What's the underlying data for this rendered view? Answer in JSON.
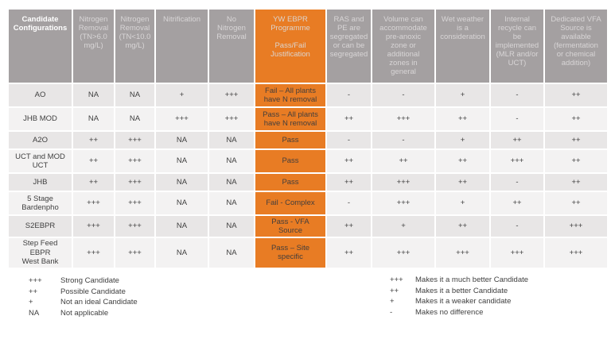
{
  "colors": {
    "accent_orange": "#E87C24",
    "header_gray": "#A4A0A1",
    "row_dark": "#E8E6E6",
    "row_light": "#F3F2F2"
  },
  "table": {
    "columns": [
      "Candidate\nConfigurations",
      "Nitrogen\nRemoval\n(TN>6.0\nmg/L)",
      "Nitrogen\nRemoval\n(TN<10.0\nmg/L)",
      "Nitrification",
      "No\nNitrogen\nRemoval",
      "YW EBPR\nProgramme\n\nPass/Fail\nJustification",
      "RAS and\nPE are\nsegregated\nor can be\nsegregated",
      "Volume can\naccommodate\npre-anoxic\nzone or\nadditional\nzones in\ngeneral",
      "Wet weather\nis a\nconsideration",
      "Internal\nrecycle can\nbe\nimplemented\n(MLR and/or\nUCT)",
      "Dedicated VFA\nSource is\navailable\n(fermentation\nor chemical\naddition)"
    ],
    "rows": [
      {
        "label": "AO",
        "pre": [
          "NA",
          "NA",
          "+",
          "+++"
        ],
        "justification": "Fail – All plants\nhave N removal",
        "post": [
          "-",
          "-",
          "+",
          "-",
          "++"
        ]
      },
      {
        "label": "JHB MOD",
        "pre": [
          "NA",
          "NA",
          "+++",
          "+++"
        ],
        "justification": "Pass – All plants\nhave N removal",
        "post": [
          "++",
          "+++",
          "++",
          "-",
          "++"
        ]
      },
      {
        "label": "A2O",
        "pre": [
          "++",
          "+++",
          "NA",
          "NA"
        ],
        "justification": "Pass",
        "post": [
          "-",
          "-",
          "+",
          "++",
          "++"
        ]
      },
      {
        "label": "UCT and MOD\nUCT",
        "pre": [
          "++",
          "+++",
          "NA",
          "NA"
        ],
        "justification": "Pass",
        "post": [
          "++",
          "++",
          "++",
          "+++",
          "++"
        ]
      },
      {
        "label": "JHB",
        "pre": [
          "++",
          "+++",
          "NA",
          "NA"
        ],
        "justification": "Pass",
        "post": [
          "++",
          "+++",
          "++",
          "-",
          "++"
        ]
      },
      {
        "label": "5 Stage\nBardenpho",
        "pre": [
          "+++",
          "+++",
          "NA",
          "NA"
        ],
        "justification": "Fail - Complex",
        "post": [
          "-",
          "+++",
          "+",
          "++",
          "++"
        ]
      },
      {
        "label": "S2EBPR",
        "pre": [
          "+++",
          "+++",
          "NA",
          "NA"
        ],
        "justification": "Pass - VFA\nSource",
        "post": [
          "++",
          "+",
          "++",
          "-",
          "+++"
        ]
      },
      {
        "label": "Step Feed\nEBPR\nWest Bank",
        "pre": [
          "+++",
          "+++",
          "NA",
          "NA"
        ],
        "justification": "Pass – Site\nspecific",
        "post": [
          "++",
          "+++",
          "+++",
          "+++",
          "+++"
        ]
      }
    ]
  },
  "legend_left": [
    {
      "symbol": "+++",
      "label": "Strong Candidate"
    },
    {
      "symbol": "++",
      "label": "Possible Candidate"
    },
    {
      "symbol": "+",
      "label": "Not an ideal Candidate"
    },
    {
      "symbol": "NA",
      "label": "Not applicable"
    }
  ],
  "legend_right": [
    {
      "symbol": "+++",
      "label": "Makes it a much better Candidate"
    },
    {
      "symbol": "++",
      "label": "Makes it a better Candidate"
    },
    {
      "symbol": "+",
      "label": "Makes it a weaker candidate"
    },
    {
      "symbol": "-",
      "label": "Makes no difference"
    }
  ]
}
